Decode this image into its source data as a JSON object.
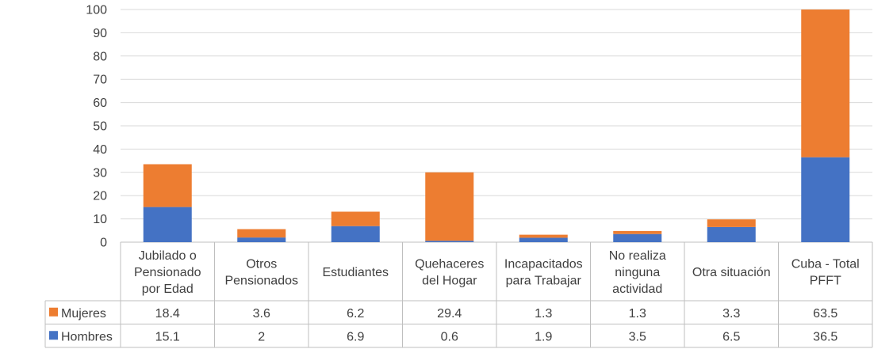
{
  "chart_data": {
    "type": "bar",
    "stacked": true,
    "categories": [
      [
        "Jubilado o",
        "Pensionado",
        "por Edad"
      ],
      [
        "Otros",
        "Pensionados"
      ],
      [
        "Estudiantes"
      ],
      [
        "Quehaceres",
        "del Hogar"
      ],
      [
        "Incapacitados",
        "para Trabajar"
      ],
      [
        "No realiza",
        "ninguna",
        "actividad"
      ],
      [
        "Otra situación"
      ],
      [
        "Cuba - Total",
        "PFFT"
      ]
    ],
    "series": [
      {
        "name": "Hombres",
        "color": "#4472C4",
        "values": [
          15.1,
          2,
          6.9,
          0.6,
          1.9,
          3.5,
          6.5,
          36.5
        ]
      },
      {
        "name": "Mujeres",
        "color": "#ED7D31",
        "values": [
          18.4,
          3.6,
          6.2,
          29.4,
          1.3,
          1.3,
          3.3,
          63.5
        ]
      }
    ],
    "table_rows": [
      "Mujeres",
      "Hombres"
    ],
    "yticks": [
      0,
      10,
      20,
      30,
      40,
      50,
      60,
      70,
      80,
      90,
      100
    ],
    "ylim": [
      0,
      100
    ],
    "grid": true,
    "data_table": true
  }
}
